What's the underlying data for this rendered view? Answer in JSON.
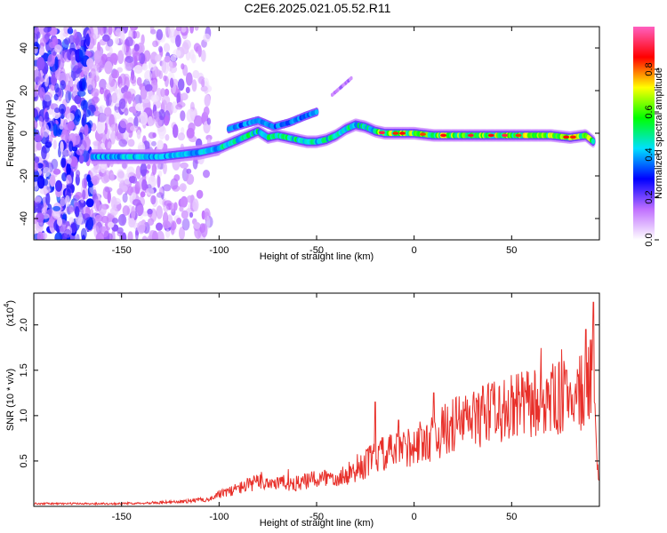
{
  "figure_title": "C2E6.2025.021.05.52.R11",
  "chart_data": [
    {
      "type": "heatmap",
      "xlabel": "Height of straight line (km)",
      "ylabel": "Frequency (Hz)",
      "xlim": [
        -195,
        95
      ],
      "ylim": [
        -50,
        50
      ],
      "x_ticks": [
        -150,
        -100,
        -50,
        0,
        50
      ],
      "y_ticks": [
        -40,
        -20,
        0,
        20,
        40
      ],
      "colorbar": {
        "label": "Normalized spectral amplitude",
        "range": [
          0.0,
          1.0
        ],
        "ticks": [
          "0.0",
          "0.2",
          "0.4",
          "0.6",
          "0.8"
        ],
        "colors": [
          "#ffffff",
          "#c070ff",
          "#0000ff",
          "#00e0ff",
          "#00ff00",
          "#ffff00",
          "#ff0000",
          "#ff60c0"
        ]
      },
      "main_trace": {
        "x": [
          -165,
          -150,
          -140,
          -130,
          -120,
          -110,
          -100,
          -95,
          -90,
          -85,
          -80,
          -75,
          -70,
          -65,
          -60,
          -55,
          -50,
          -45,
          -40,
          -35,
          -30,
          -25,
          -20,
          -15,
          -10,
          -5,
          0,
          10,
          20,
          30,
          40,
          50,
          60,
          70,
          80,
          88,
          92
        ],
        "y": [
          -11,
          -11,
          -11,
          -11,
          -10,
          -9,
          -7,
          -5,
          -3,
          -1,
          1,
          -2,
          -1,
          -2,
          -3,
          -4,
          -4,
          -3,
          -1,
          2,
          4,
          3,
          1,
          0,
          0,
          0,
          0,
          -1,
          -1,
          -1,
          -1,
          -1,
          -1,
          -1,
          -2,
          -1,
          -4
        ]
      },
      "secondary_trace": {
        "x": [
          -95,
          -88,
          -80,
          -72,
          -64,
          -56,
          -50
        ],
        "y": [
          2,
          4,
          6,
          3,
          5,
          8,
          10
        ]
      },
      "streak": {
        "x": [
          -42,
          -32
        ],
        "y": [
          18,
          26
        ]
      }
    },
    {
      "type": "line",
      "xlabel": "Height of straight line (km)",
      "ylabel": "SNR (10 * v/v)",
      "y_multiplier_label": "(x10",
      "y_multiplier_exp": "4",
      "y_multiplier_close": ")",
      "xlim": [
        -195,
        95
      ],
      "ylim": [
        0,
        23500
      ],
      "x_ticks": [
        -150,
        -100,
        -50,
        0,
        50
      ],
      "y_ticks": [
        "0.5",
        "1.0",
        "1.5",
        "2.0"
      ],
      "y_tick_values": [
        5000,
        10000,
        15000,
        20000
      ],
      "line_color": "#e8302a",
      "envelope": {
        "x": [
          -195,
          -150,
          -120,
          -105,
          -100,
          -90,
          -80,
          -70,
          -60,
          -50,
          -40,
          -30,
          -20,
          -10,
          0,
          10,
          20,
          30,
          40,
          50,
          60,
          70,
          80,
          85,
          88,
          90,
          92,
          93,
          95
        ],
        "y": [
          300,
          300,
          500,
          800,
          1300,
          2000,
          2700,
          2600,
          2500,
          3000,
          3300,
          3800,
          5500,
          6000,
          6800,
          7600,
          9000,
          9700,
          10300,
          10800,
          11300,
          11700,
          12100,
          12500,
          12800,
          13500,
          14500,
          8000,
          2000
        ]
      },
      "noise_amplitude_fraction": 0.35,
      "spikes": [
        {
          "x": -20,
          "y": 11500
        },
        {
          "x": 10,
          "y": 12500
        },
        {
          "x": -8,
          "y": 9500
        },
        {
          "x": 40,
          "y": 13500
        },
        {
          "x": 78,
          "y": 15000
        },
        {
          "x": 88,
          "y": 19500
        },
        {
          "x": 92,
          "y": 22500
        }
      ]
    }
  ]
}
